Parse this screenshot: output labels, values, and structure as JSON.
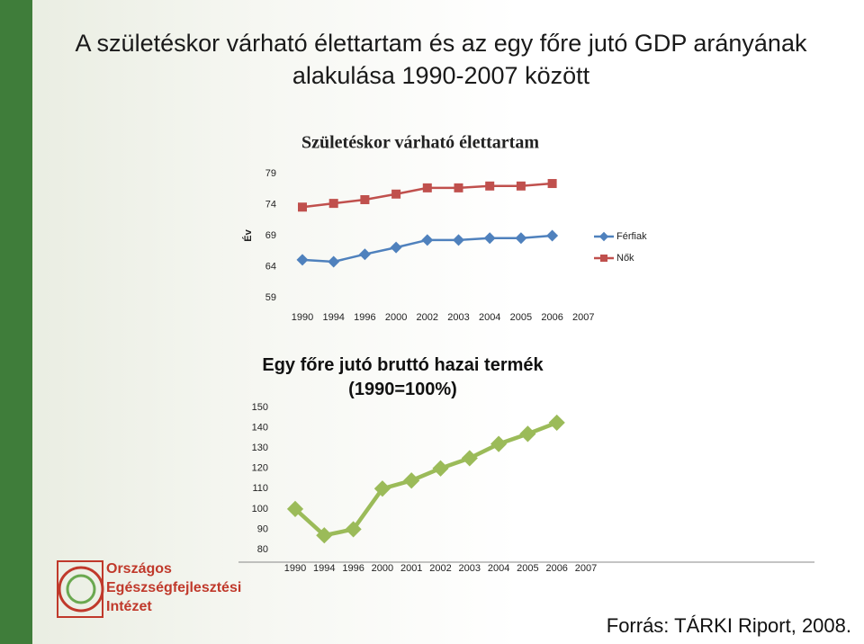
{
  "title": "A születéskor várható élettartam és az egy főre jutó GDP arányának alakulása 1990-2007 között",
  "chart_data": [
    {
      "type": "line",
      "title": "Születéskor várható élettartam",
      "y_label": "Év",
      "categories": [
        "1990",
        "1994",
        "1996",
        "2000",
        "2002",
        "2003",
        "2004",
        "2005",
        "2006",
        "2007"
      ],
      "series": [
        {
          "name": "Férfiak",
          "color": "#4f81bd",
          "marker": "diamond",
          "values": [
            65.1,
            64.8,
            66.0,
            67.1,
            68.3,
            68.3,
            68.6,
            68.6,
            69.0,
            null
          ]
        },
        {
          "name": "Nők",
          "color": "#c0504d",
          "marker": "square",
          "values": [
            73.6,
            74.2,
            74.8,
            75.7,
            76.7,
            76.7,
            77.0,
            77.0,
            77.4,
            null
          ]
        }
      ],
      "ylim": [
        59,
        79
      ],
      "yticks": [
        59,
        64,
        69,
        74,
        79
      ],
      "grid": false,
      "legend": "right"
    },
    {
      "type": "line",
      "title": "Egy főre jutó bruttó hazai termék (1990=100%)",
      "categories": [
        "1990",
        "1994",
        "1996",
        "2000",
        "2001",
        "2002",
        "2003",
        "2004",
        "2005",
        "2006",
        "2007"
      ],
      "series": [
        {
          "color": "#9bbb59",
          "marker": "diamond",
          "values": [
            100,
            87,
            90,
            110,
            114,
            120,
            125,
            132,
            137,
            142.5,
            null
          ]
        }
      ],
      "ylim": [
        80,
        150
      ],
      "yticks": [
        80,
        90,
        100,
        110,
        120,
        130,
        140,
        150
      ],
      "grid": false
    }
  ],
  "logo": [
    "Országos",
    "Egészségfejlesztési",
    "Intézet"
  ],
  "source": "Forrás: TÁRKI Riport, 2008."
}
